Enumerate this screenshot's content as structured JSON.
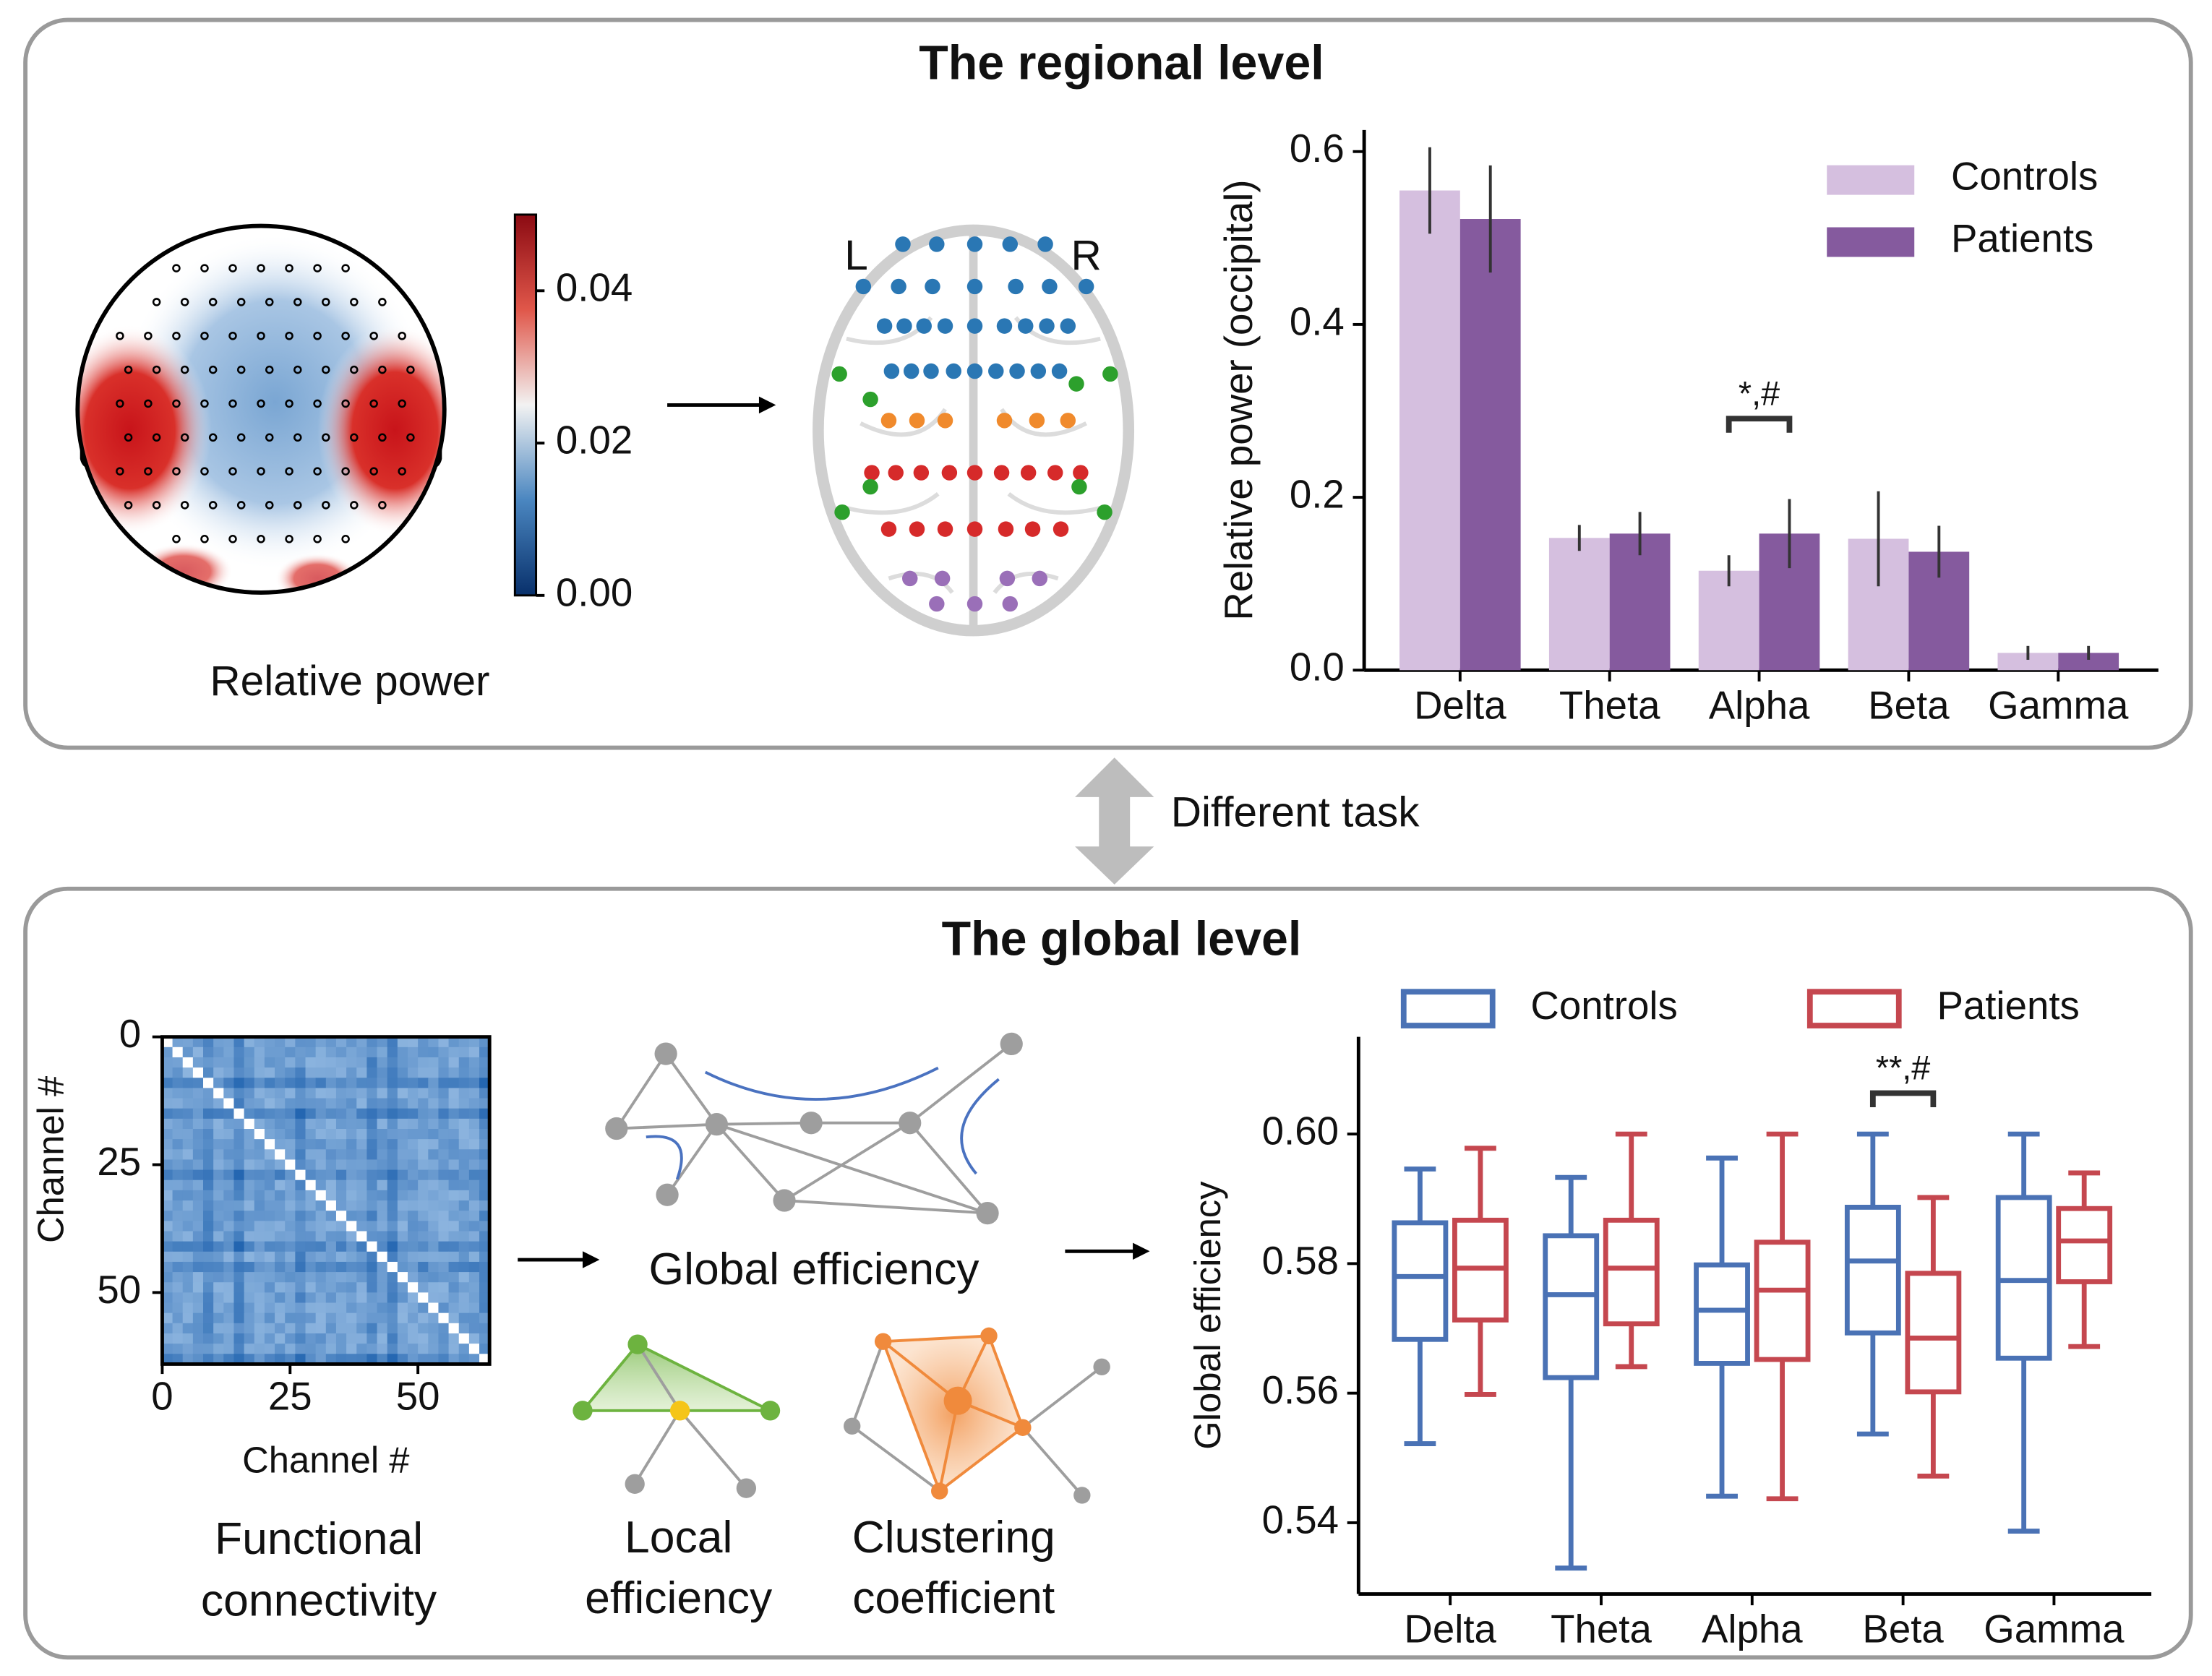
{
  "panels": [
    {
      "title": "The regional level"
    },
    {
      "title": "The global level"
    }
  ],
  "transition": "Different task",
  "topomap": {
    "label": "Relative power",
    "colorbar": {
      "clim": [
        0,
        0.05
      ],
      "ticks": [
        {
          "value": 0,
          "label": "0.00"
        },
        0.02,
        0.04
      ]
    }
  },
  "brain": {
    "left": "L",
    "right": "R"
  },
  "matrix": {
    "xlabel": "Channel #",
    "ylabel": "Channel #",
    "xlim": [
      0,
      64
    ],
    "ylim": [
      0,
      64
    ],
    "xticks": [
      0,
      25,
      50
    ],
    "yticks": [
      0,
      25,
      50
    ],
    "caption": [
      "Functional",
      "connectivity"
    ]
  },
  "network": {
    "global": "Global efficiency",
    "local": [
      "Local",
      "efficiency"
    ],
    "clustering": [
      "Clustering",
      "coefficient"
    ]
  },
  "chart_data": [
    {
      "type": "bar",
      "ylabel": "Relative power (occipital)",
      "categories": [
        "Delta",
        "Theta",
        "Alpha",
        "Beta",
        "Gamma"
      ],
      "series": [
        {
          "name": "Controls",
          "color": "#d5bfdf",
          "values": [
            0.555,
            0.153,
            0.115,
            0.152,
            0.02
          ],
          "errors": [
            0.05,
            0.015,
            0.018,
            0.055,
            0.008
          ]
        },
        {
          "name": "Patients",
          "color": "#855a9e",
          "values": [
            0.522,
            0.158,
            0.158,
            0.137,
            0.02
          ],
          "errors": [
            0.062,
            0.025,
            0.04,
            0.03,
            0.008
          ]
        }
      ],
      "ylim": [
        0,
        0.625
      ],
      "yticks": [
        {
          "value": 0,
          "label": "0.0"
        },
        0.2,
        0.4,
        0.6
      ],
      "legend": "upper right",
      "annotations": [
        {
          "text": "*,#",
          "category": "Alpha"
        }
      ]
    },
    {
      "type": "box",
      "ylabel": "Global efficiency",
      "categories": [
        "Delta",
        "Theta",
        "Alpha",
        "Beta",
        "Gamma"
      ],
      "series": [
        {
          "name": "Controls",
          "color": "#4a72b5",
          "boxes": [
            {
              "min": 0.5522,
              "q1": 0.5683,
              "median": 0.578,
              "q3": 0.5863,
              "max": 0.5946
            },
            {
              "min": 0.533,
              "q1": 0.5624,
              "median": 0.5752,
              "q3": 0.5843,
              "max": 0.5933
            },
            {
              "min": 0.5441,
              "q1": 0.5646,
              "median": 0.5728,
              "q3": 0.5798,
              "max": 0.5963
            },
            {
              "min": 0.5537,
              "q1": 0.5693,
              "median": 0.5804,
              "q3": 0.5887,
              "max": 0.6
            },
            {
              "min": 0.5387,
              "q1": 0.5654,
              "median": 0.5774,
              "q3": 0.5902,
              "max": 0.6
            }
          ]
        },
        {
          "name": "Patients",
          "color": "#c5474f",
          "boxes": [
            {
              "min": 0.5598,
              "q1": 0.5713,
              "median": 0.5793,
              "q3": 0.5867,
              "max": 0.5978
            },
            {
              "min": 0.5641,
              "q1": 0.5707,
              "median": 0.5793,
              "q3": 0.5867,
              "max": 0.6
            },
            {
              "min": 0.5437,
              "q1": 0.5652,
              "median": 0.5759,
              "q3": 0.5833,
              "max": 0.6
            },
            {
              "min": 0.5472,
              "q1": 0.5602,
              "median": 0.5685,
              "q3": 0.5785,
              "max": 0.5902
            },
            {
              "min": 0.5672,
              "q1": 0.5772,
              "median": 0.5835,
              "q3": 0.5885,
              "max": 0.594
            }
          ]
        }
      ],
      "ylim": [
        0.529,
        0.615
      ],
      "yticks": [
        {
          "value": 0.6,
          "label": "0.60"
        },
        0.58,
        0.56,
        0.54
      ],
      "legend": "upper center",
      "annotations": [
        {
          "text": "**,#",
          "category": "Beta"
        }
      ]
    }
  ]
}
